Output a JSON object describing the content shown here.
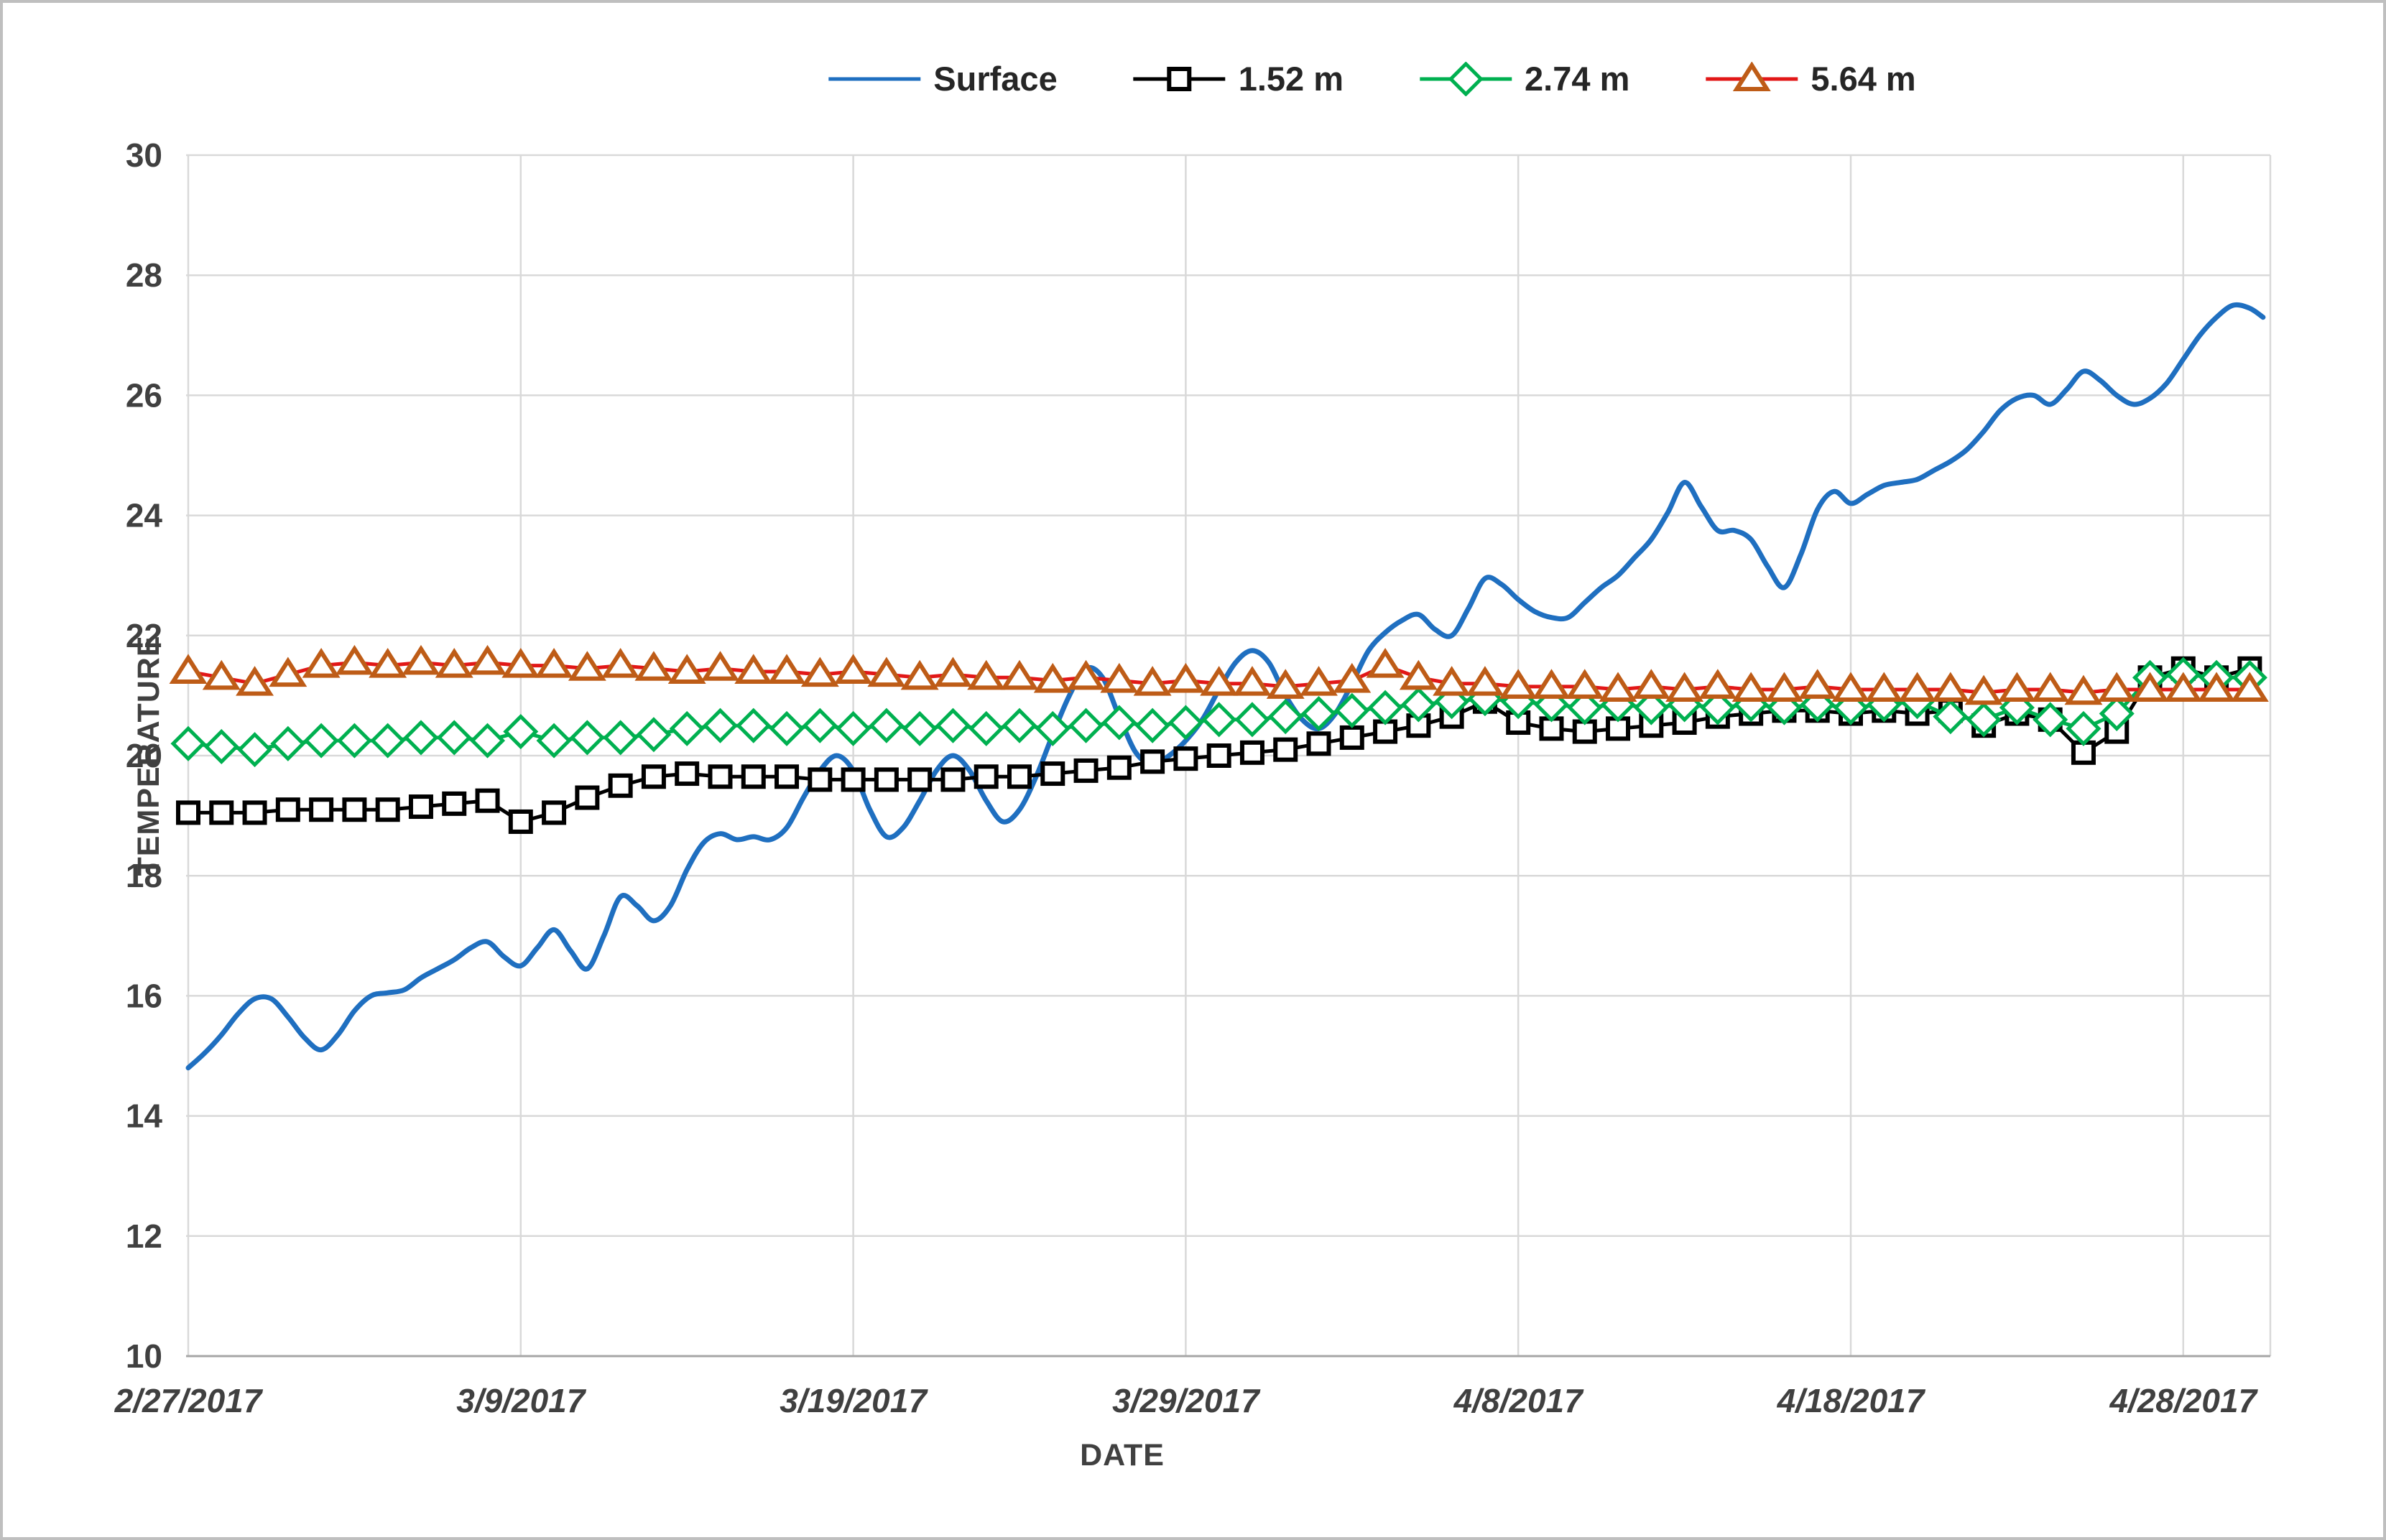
{
  "figure": {
    "background": "#FFFFFF",
    "border_color": "#BFBFBF"
  },
  "chart_data": {
    "type": "line",
    "title": "",
    "xlabel": "DATE",
    "ylabel": "TEMPERATURE",
    "ylim": [
      10,
      30
    ],
    "ytick_step": 2,
    "grid": true,
    "legend_position": "top-center",
    "grid_color": "#D9D9D9",
    "axis_line_color": "#A6A6A6",
    "tick_text_color": "#404040",
    "legend_text_color": "#262626",
    "y_tick_labels": [
      "10",
      "12",
      "14",
      "16",
      "18",
      "20",
      "22",
      "24",
      "26",
      "28",
      "30"
    ],
    "x_tick_labels": [
      "2/27/2017",
      "3/9/2017",
      "3/19/2017",
      "3/29/2017",
      "4/8/2017",
      "4/18/2017",
      "4/28/2017"
    ],
    "x_tick_days": [
      0,
      10,
      20,
      30,
      40,
      50,
      60
    ],
    "x_start_date": "2/27/2017",
    "x_max_day": 62.6,
    "series": [
      {
        "name": "Surface",
        "color": "#1F6FC0",
        "marker": "none",
        "smooth": true,
        "points": [
          [
            0,
            14.8
          ],
          [
            0.5,
            15.05
          ],
          [
            1,
            15.35
          ],
          [
            1.5,
            15.7
          ],
          [
            2,
            15.95
          ],
          [
            2.5,
            15.95
          ],
          [
            3,
            15.65
          ],
          [
            3.5,
            15.3
          ],
          [
            4,
            15.1
          ],
          [
            4.5,
            15.35
          ],
          [
            5,
            15.75
          ],
          [
            5.5,
            16.0
          ],
          [
            6,
            16.05
          ],
          [
            6.5,
            16.1
          ],
          [
            7,
            16.3
          ],
          [
            7.5,
            16.45
          ],
          [
            8,
            16.6
          ],
          [
            8.5,
            16.8
          ],
          [
            9,
            16.9
          ],
          [
            9.5,
            16.65
          ],
          [
            10,
            16.5
          ],
          [
            10.5,
            16.8
          ],
          [
            11,
            17.1
          ],
          [
            11.5,
            16.75
          ],
          [
            12,
            16.45
          ],
          [
            12.5,
            17.0
          ],
          [
            13,
            17.65
          ],
          [
            13.5,
            17.5
          ],
          [
            14,
            17.25
          ],
          [
            14.5,
            17.5
          ],
          [
            15,
            18.1
          ],
          [
            15.5,
            18.55
          ],
          [
            16,
            18.7
          ],
          [
            16.5,
            18.6
          ],
          [
            17,
            18.65
          ],
          [
            17.5,
            18.6
          ],
          [
            18,
            18.8
          ],
          [
            18.5,
            19.3
          ],
          [
            19,
            19.75
          ],
          [
            19.5,
            20.0
          ],
          [
            20,
            19.75
          ],
          [
            20.5,
            19.1
          ],
          [
            21,
            18.65
          ],
          [
            21.5,
            18.8
          ],
          [
            22,
            19.25
          ],
          [
            22.5,
            19.75
          ],
          [
            23,
            20.0
          ],
          [
            23.5,
            19.75
          ],
          [
            24,
            19.25
          ],
          [
            24.5,
            18.9
          ],
          [
            25,
            19.1
          ],
          [
            25.5,
            19.65
          ],
          [
            26,
            20.35
          ],
          [
            26.5,
            21.0
          ],
          [
            27,
            21.45
          ],
          [
            27.5,
            21.3
          ],
          [
            28,
            20.65
          ],
          [
            28.5,
            20.05
          ],
          [
            29,
            19.85
          ],
          [
            29.5,
            20.0
          ],
          [
            30,
            20.25
          ],
          [
            30.5,
            20.6
          ],
          [
            31,
            21.1
          ],
          [
            31.5,
            21.55
          ],
          [
            32,
            21.75
          ],
          [
            32.5,
            21.55
          ],
          [
            33,
            21.0
          ],
          [
            33.5,
            20.6
          ],
          [
            34,
            20.45
          ],
          [
            34.5,
            20.7
          ],
          [
            35,
            21.2
          ],
          [
            35.5,
            21.75
          ],
          [
            36,
            22.05
          ],
          [
            36.5,
            22.25
          ],
          [
            37,
            22.35
          ],
          [
            37.5,
            22.1
          ],
          [
            38,
            22.0
          ],
          [
            38.5,
            22.45
          ],
          [
            39,
            22.95
          ],
          [
            39.5,
            22.85
          ],
          [
            40,
            22.6
          ],
          [
            40.5,
            22.4
          ],
          [
            41,
            22.3
          ],
          [
            41.5,
            22.3
          ],
          [
            42,
            22.55
          ],
          [
            42.5,
            22.8
          ],
          [
            43,
            23.0
          ],
          [
            43.5,
            23.3
          ],
          [
            44,
            23.6
          ],
          [
            44.5,
            24.05
          ],
          [
            45,
            24.55
          ],
          [
            45.5,
            24.15
          ],
          [
            46,
            23.75
          ],
          [
            46.5,
            23.75
          ],
          [
            47,
            23.6
          ],
          [
            47.5,
            23.15
          ],
          [
            48,
            22.8
          ],
          [
            48.5,
            23.35
          ],
          [
            49,
            24.1
          ],
          [
            49.5,
            24.4
          ],
          [
            50,
            24.2
          ],
          [
            50.5,
            24.35
          ],
          [
            51,
            24.5
          ],
          [
            51.5,
            24.55
          ],
          [
            52,
            24.6
          ],
          [
            52.5,
            24.75
          ],
          [
            53,
            24.9
          ],
          [
            53.5,
            25.1
          ],
          [
            54,
            25.4
          ],
          [
            54.5,
            25.75
          ],
          [
            55,
            25.95
          ],
          [
            55.5,
            26.0
          ],
          [
            56,
            25.85
          ],
          [
            56.5,
            26.1
          ],
          [
            57,
            26.4
          ],
          [
            57.5,
            26.25
          ],
          [
            58,
            26.0
          ],
          [
            58.5,
            25.85
          ],
          [
            59,
            25.95
          ],
          [
            59.5,
            26.2
          ],
          [
            60,
            26.6
          ],
          [
            60.5,
            27.0
          ],
          [
            61,
            27.3
          ],
          [
            61.5,
            27.5
          ],
          [
            62,
            27.45
          ],
          [
            62.4,
            27.3
          ]
        ]
      },
      {
        "name": "1.52 m",
        "color": "#000000",
        "marker": "square",
        "marker_color": "#000000",
        "values": [
          19.05,
          19.05,
          19.05,
          19.1,
          19.1,
          19.1,
          19.1,
          19.15,
          19.2,
          19.25,
          18.9,
          19.05,
          19.3,
          19.5,
          19.65,
          19.7,
          19.65,
          19.65,
          19.65,
          19.6,
          19.6,
          19.6,
          19.6,
          19.6,
          19.65,
          19.65,
          19.7,
          19.75,
          19.8,
          19.9,
          19.95,
          20.0,
          20.05,
          20.1,
          20.2,
          20.3,
          20.4,
          20.5,
          20.65,
          20.9,
          20.55,
          20.45,
          20.4,
          20.45,
          20.5,
          20.55,
          20.65,
          20.7,
          20.75,
          20.75,
          20.7,
          20.75,
          20.7,
          20.75,
          20.5,
          20.7,
          20.6,
          20.05,
          20.4,
          21.3,
          21.45,
          21.3,
          21.45
        ]
      },
      {
        "name": "2.74 m",
        "color": "#00B050",
        "marker": "diamond",
        "marker_color": "#00B050",
        "values": [
          20.2,
          20.15,
          20.1,
          20.2,
          20.25,
          20.25,
          20.25,
          20.3,
          20.3,
          20.25,
          20.4,
          20.25,
          20.3,
          20.3,
          20.35,
          20.45,
          20.5,
          20.5,
          20.45,
          20.5,
          20.45,
          20.5,
          20.45,
          20.5,
          20.45,
          20.5,
          20.45,
          20.5,
          20.55,
          20.5,
          20.55,
          20.6,
          20.6,
          20.65,
          20.7,
          20.75,
          20.8,
          20.85,
          20.9,
          20.95,
          20.9,
          20.85,
          20.8,
          20.85,
          20.8,
          20.85,
          20.8,
          20.85,
          20.8,
          20.85,
          20.8,
          20.85,
          20.9,
          20.65,
          20.6,
          20.8,
          20.6,
          20.45,
          20.7,
          21.3,
          21.35,
          21.3,
          21.3
        ]
      },
      {
        "name": "5.64 m",
        "color": "#E21717",
        "marker": "triangle",
        "marker_color": "#BE5C17",
        "values": [
          21.4,
          21.3,
          21.2,
          21.35,
          21.5,
          21.55,
          21.5,
          21.55,
          21.5,
          21.55,
          21.5,
          21.5,
          21.45,
          21.5,
          21.45,
          21.4,
          21.45,
          21.4,
          21.4,
          21.35,
          21.4,
          21.35,
          21.3,
          21.35,
          21.3,
          21.3,
          21.25,
          21.3,
          21.25,
          21.2,
          21.25,
          21.2,
          21.2,
          21.15,
          21.2,
          21.25,
          21.5,
          21.3,
          21.2,
          21.2,
          21.15,
          21.15,
          21.15,
          21.1,
          21.15,
          21.1,
          21.15,
          21.1,
          21.1,
          21.15,
          21.1,
          21.1,
          21.1,
          21.1,
          21.05,
          21.1,
          21.1,
          21.05,
          21.1,
          21.1,
          21.1,
          21.1,
          21.1
        ]
      }
    ]
  }
}
